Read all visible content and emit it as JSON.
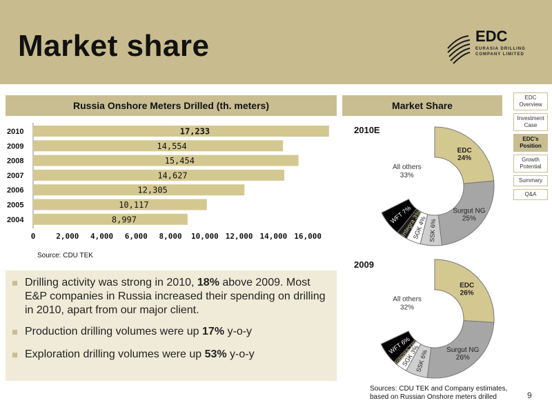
{
  "slide": {
    "title": "Market share",
    "page_number": "9",
    "header_color": "#c8bc8e",
    "accent_color": "#c9be92"
  },
  "logo": {
    "name": "EDC",
    "line1": "EURASIA DRILLING",
    "line2": "COMPANY LIMITED",
    "icon": "edc-stripes-logo-icon"
  },
  "nav": {
    "items": [
      {
        "label": "EDC Overview",
        "active": false
      },
      {
        "label": "Investment Case",
        "active": false
      },
      {
        "label": "EDC's Position",
        "active": true
      },
      {
        "label": "Growth Potential",
        "active": false
      },
      {
        "label": "Summary",
        "active": false
      },
      {
        "label": "Q&A",
        "active": false
      }
    ]
  },
  "bar_section": {
    "title": "Russia Onshore Meters Drilled (th. meters)",
    "source": "Source: CDU TEK"
  },
  "pie_section": {
    "title": "Market Share",
    "sources_line1": "Sources: CDU TEK and Company estimates,",
    "sources_line2": "based on Russian Onshore meters drilled"
  },
  "bullets": [
    {
      "pre": "Drilling activity was strong in 2010, ",
      "bold": "18%",
      "post": " above 2009. Most E&P companies in Russia increased their spending on drilling in 2010, apart from our major client."
    },
    {
      "pre": "Production drilling volumes were up ",
      "bold": "17%",
      "post": " y-o-y"
    },
    {
      "pre": "Exploration drilling volumes were up ",
      "bold": "53%",
      "post": " y-o-y"
    }
  ],
  "chart_data": [
    {
      "type": "bar",
      "orientation": "horizontal",
      "title": "Russia Onshore Meters Drilled (th. meters)",
      "categories": [
        "2010",
        "2009",
        "2008",
        "2007",
        "2006",
        "2005",
        "2004"
      ],
      "values": [
        17233,
        14554,
        15454,
        14627,
        12305,
        10117,
        8997
      ],
      "value_labels": [
        "17,233",
        "14,554",
        "15,454",
        "14,627",
        "12,305",
        "10,117",
        "8,997"
      ],
      "xlim": [
        0,
        17600
      ],
      "x_ticks": [
        0,
        2000,
        4000,
        6000,
        8000,
        10000,
        12000,
        14000,
        16000
      ],
      "x_tick_labels": [
        "0",
        "2,000",
        "4,000",
        "6,000",
        "8,000",
        "10,000",
        "12,000",
        "14,000",
        "16,000"
      ],
      "bar_color": "#d4c891",
      "grid": false
    },
    {
      "type": "pie",
      "title": "2010E",
      "style": "donut",
      "slices": [
        {
          "label": "EDC",
          "value": 24,
          "display": "EDC\n24%",
          "color": "#d4c891"
        },
        {
          "label": "Surgut NG",
          "value": 25,
          "display": "Surgut NG\n25%",
          "color": "#a6a6a6"
        },
        {
          "label": "SSK",
          "value": 6,
          "display": "SSK 6%",
          "color": "#cfcfcf"
        },
        {
          "label": "SGK",
          "value": 4,
          "display": "SGK 4%",
          "color": "#ffffff"
        },
        {
          "label": "Integra",
          "value": 3,
          "display": "Integra 3%",
          "color": "#1a1a1a"
        },
        {
          "label": "WFT",
          "value": 7,
          "display": "WFT 7%",
          "color": "#000000"
        },
        {
          "label": "All others",
          "value": 33,
          "display": "All others\n33%",
          "color": "#ffffff"
        }
      ]
    },
    {
      "type": "pie",
      "title": "2009",
      "style": "donut",
      "slices": [
        {
          "label": "EDC",
          "value": 26,
          "display": "EDC\n26%",
          "color": "#d4c891"
        },
        {
          "label": "Surgut NG",
          "value": 26,
          "display": "Surgut NG\n26%",
          "color": "#a6a6a6"
        },
        {
          "label": "SSK",
          "value": 6,
          "display": "SSK 6%",
          "color": "#cfcfcf"
        },
        {
          "label": "SGK",
          "value": 3,
          "display": "SGK 3%",
          "color": "#ffffff"
        },
        {
          "label": "Integra",
          "value": 1,
          "display": "Integra 1%",
          "color": "#1a1a1a"
        },
        {
          "label": "WFT",
          "value": 6,
          "display": "WFT 6%",
          "color": "#000000"
        },
        {
          "label": "All others",
          "value": 32,
          "display": "All others\n32%",
          "color": "#ffffff"
        }
      ]
    }
  ]
}
